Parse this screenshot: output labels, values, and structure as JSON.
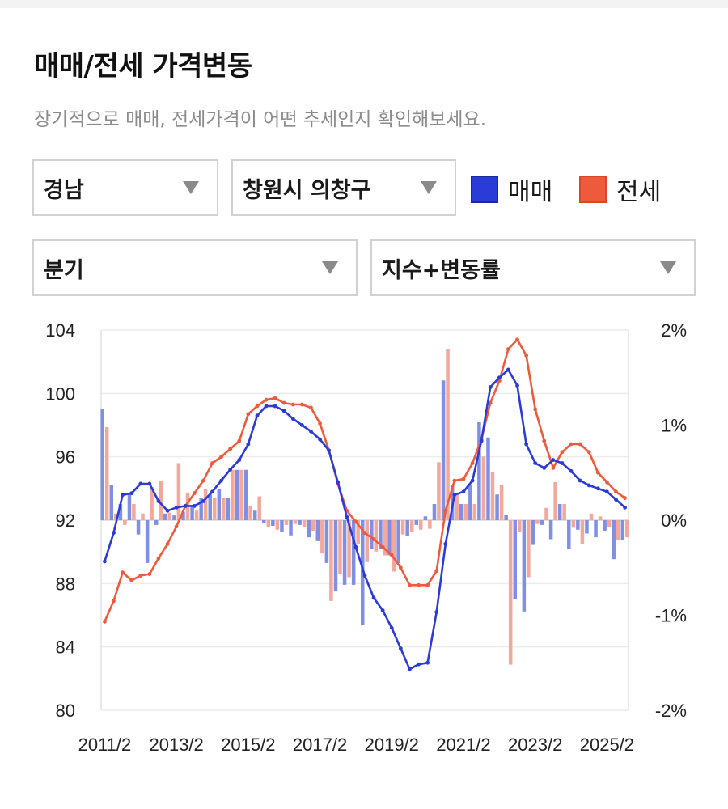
{
  "page": {
    "title": "매매/전세 가격변동",
    "subtitle": "장기적으로 매매, 전세가격이 어떤 추세인지 확인해보세요."
  },
  "filters": {
    "region": "경남",
    "district": "창원시 의창구",
    "period": "분기",
    "metric": "지수+변동률"
  },
  "legend": [
    {
      "label": "매매",
      "color": "#2b3bd8"
    },
    {
      "label": "전세",
      "color": "#f05a3c"
    }
  ],
  "chart_data": {
    "type": "line+bar",
    "x_tick_labels": [
      "2011/2",
      "2013/2",
      "2015/2",
      "2017/2",
      "2019/2",
      "2021/2",
      "2023/2",
      "2025/2"
    ],
    "y_left": {
      "ticks": [
        104,
        100,
        96,
        92,
        88,
        84,
        80
      ],
      "range": [
        80,
        104
      ]
    },
    "y_right": {
      "ticks": [
        "2%",
        "1%",
        "0%",
        "-1%",
        "-2%"
      ],
      "range": [
        -2,
        2
      ]
    },
    "x_range": [
      2011.0,
      2025.7
    ],
    "series": [
      {
        "name": "매매",
        "kind": "index_line",
        "color": "#2b3bd8",
        "x": [
          2011.1,
          2011.35,
          2011.6,
          2011.85,
          2012.1,
          2012.35,
          2012.6,
          2012.85,
          2013.1,
          2013.35,
          2013.6,
          2013.85,
          2014.1,
          2014.35,
          2014.6,
          2014.85,
          2015.1,
          2015.35,
          2015.6,
          2015.85,
          2016.1,
          2016.35,
          2016.6,
          2016.85,
          2017.1,
          2017.35,
          2017.6,
          2017.85,
          2018.1,
          2018.35,
          2018.6,
          2018.85,
          2019.1,
          2019.35,
          2019.6,
          2019.85,
          2020.1,
          2020.35,
          2020.6,
          2020.85,
          2021.1,
          2021.35,
          2021.6,
          2021.85,
          2022.1,
          2022.35,
          2022.6,
          2022.85,
          2023.1,
          2023.35,
          2023.6,
          2023.85,
          2024.1,
          2024.35,
          2024.6,
          2024.85,
          2025.1,
          2025.35,
          2025.6
        ],
        "values": [
          89.4,
          91.2,
          93.6,
          93.7,
          94.3,
          94.3,
          93.2,
          92.6,
          92.8,
          92.9,
          92.9,
          93.2,
          93.8,
          94.5,
          95.2,
          95.8,
          96.8,
          98.6,
          99.2,
          99.2,
          98.9,
          98.4,
          98.0,
          97.6,
          97.1,
          96.4,
          94.4,
          92.2,
          90.3,
          88.5,
          87.1,
          86.3,
          85.2,
          83.9,
          82.6,
          82.9,
          83.0,
          86.2,
          90.5,
          93.6,
          93.8,
          94.5,
          97.0,
          100.4,
          101.0,
          101.5,
          100.5,
          96.8,
          95.6,
          95.3,
          95.8,
          95.6,
          95.1,
          94.5,
          94.2,
          94.0,
          93.8,
          93.3,
          92.8
        ]
      },
      {
        "name": "전세",
        "kind": "index_line",
        "color": "#f05a3c",
        "x": [
          2011.1,
          2011.35,
          2011.6,
          2011.85,
          2012.1,
          2012.35,
          2012.6,
          2012.85,
          2013.1,
          2013.35,
          2013.6,
          2013.85,
          2014.1,
          2014.35,
          2014.6,
          2014.85,
          2015.1,
          2015.35,
          2015.6,
          2015.85,
          2016.1,
          2016.35,
          2016.6,
          2016.85,
          2017.1,
          2017.35,
          2017.6,
          2017.85,
          2018.1,
          2018.35,
          2018.6,
          2018.85,
          2019.1,
          2019.35,
          2019.6,
          2019.85,
          2020.1,
          2020.35,
          2020.6,
          2020.85,
          2021.1,
          2021.35,
          2021.6,
          2021.85,
          2022.1,
          2022.35,
          2022.6,
          2022.85,
          2023.1,
          2023.35,
          2023.6,
          2023.85,
          2024.1,
          2024.35,
          2024.6,
          2024.85,
          2025.1,
          2025.35,
          2025.6
        ],
        "values": [
          85.6,
          86.9,
          88.7,
          88.2,
          88.5,
          88.6,
          89.6,
          90.5,
          91.6,
          92.9,
          93.7,
          94.5,
          95.6,
          96.0,
          96.5,
          97.0,
          98.7,
          99.2,
          99.6,
          99.7,
          99.4,
          99.3,
          99.3,
          99.1,
          98.1,
          96.4,
          94.3,
          92.6,
          91.9,
          91.2,
          90.8,
          90.3,
          89.8,
          89.0,
          87.9,
          87.9,
          87.9,
          88.8,
          92.6,
          94.5,
          94.6,
          95.6,
          97.1,
          99.4,
          100.8,
          102.8,
          103.4,
          102.4,
          99.0,
          97.0,
          95.3,
          96.3,
          96.8,
          96.8,
          96.3,
          95.0,
          94.4,
          93.8,
          93.4
        ]
      },
      {
        "name": "매매",
        "kind": "change_bar_pct",
        "color": "#7f8fe6",
        "x": [
          2011.1,
          2011.35,
          2011.6,
          2011.85,
          2012.1,
          2012.35,
          2012.6,
          2012.85,
          2013.1,
          2013.35,
          2013.6,
          2013.85,
          2014.1,
          2014.35,
          2014.6,
          2014.85,
          2015.1,
          2015.35,
          2015.6,
          2015.85,
          2016.1,
          2016.35,
          2016.6,
          2016.85,
          2017.1,
          2017.35,
          2017.6,
          2017.85,
          2018.1,
          2018.35,
          2018.6,
          2018.85,
          2019.1,
          2019.35,
          2019.6,
          2019.85,
          2020.1,
          2020.35,
          2020.6,
          2020.85,
          2021.1,
          2021.35,
          2021.6,
          2021.85,
          2022.1,
          2022.35,
          2022.6,
          2022.85,
          2023.1,
          2023.35,
          2023.6,
          2023.85,
          2024.1,
          2024.35,
          2024.6,
          2024.85,
          2025.1,
          2025.35,
          2025.6
        ],
        "values": [
          1.17,
          0.37,
          0.17,
          0.27,
          -0.15,
          -0.45,
          -0.05,
          0.07,
          0.05,
          0.09,
          0.16,
          0.23,
          0.27,
          0.33,
          0.23,
          0.53,
          0.53,
          0.1,
          -0.03,
          -0.06,
          -0.12,
          -0.16,
          -0.05,
          -0.18,
          -0.22,
          -0.45,
          -0.75,
          -0.68,
          -0.68,
          -1.1,
          -0.3,
          -0.3,
          -0.37,
          -0.45,
          -0.17,
          -0.05,
          0.04,
          0.17,
          1.47,
          0.37,
          0.17,
          0.37,
          1.03,
          0.87,
          0.27,
          0.06,
          -0.83,
          -0.96,
          -0.26,
          -0.05,
          -0.2,
          0.17,
          -0.3,
          -0.1,
          -0.14,
          -0.18,
          -0.11,
          -0.41,
          -0.21
        ]
      },
      {
        "name": "전세",
        "kind": "change_bar_pct",
        "color": "#f4a79a",
        "x": [
          2011.1,
          2011.35,
          2011.6,
          2011.85,
          2012.1,
          2012.35,
          2012.6,
          2012.85,
          2013.1,
          2013.35,
          2013.6,
          2013.85,
          2014.1,
          2014.35,
          2014.6,
          2014.85,
          2015.1,
          2015.35,
          2015.6,
          2015.85,
          2016.1,
          2016.35,
          2016.6,
          2016.85,
          2017.1,
          2017.35,
          2017.6,
          2017.85,
          2018.1,
          2018.35,
          2018.6,
          2018.85,
          2019.1,
          2019.35,
          2019.6,
          2019.85,
          2020.1,
          2020.35,
          2020.6,
          2020.85,
          2021.1,
          2021.35,
          2021.6,
          2021.85,
          2022.1,
          2022.35,
          2022.6,
          2022.85,
          2023.1,
          2023.35,
          2023.6,
          2023.85,
          2024.1,
          2024.35,
          2024.6,
          2024.85,
          2025.1,
          2025.35,
          2025.6
        ],
        "values": [
          0.98,
          0.07,
          -0.05,
          0.17,
          0.07,
          0.35,
          0.41,
          0.08,
          0.6,
          0.29,
          0.1,
          0.33,
          0.24,
          0.23,
          0.53,
          0.53,
          0.15,
          0.25,
          -0.07,
          -0.1,
          -0.05,
          -0.04,
          -0.07,
          -0.11,
          -0.35,
          -0.85,
          -0.57,
          -0.6,
          -0.25,
          -0.44,
          -0.33,
          -0.37,
          -0.54,
          -0.15,
          -0.12,
          -0.1,
          -0.09,
          0.61,
          1.8,
          0.27,
          0.17,
          0.17,
          0.67,
          0.51,
          0.37,
          -1.52,
          -0.12,
          -0.6,
          -0.04,
          0.13,
          0.4,
          0.17,
          -0.08,
          -0.25,
          0.07,
          0.04,
          -0.07,
          -0.21,
          -0.18
        ]
      }
    ]
  }
}
